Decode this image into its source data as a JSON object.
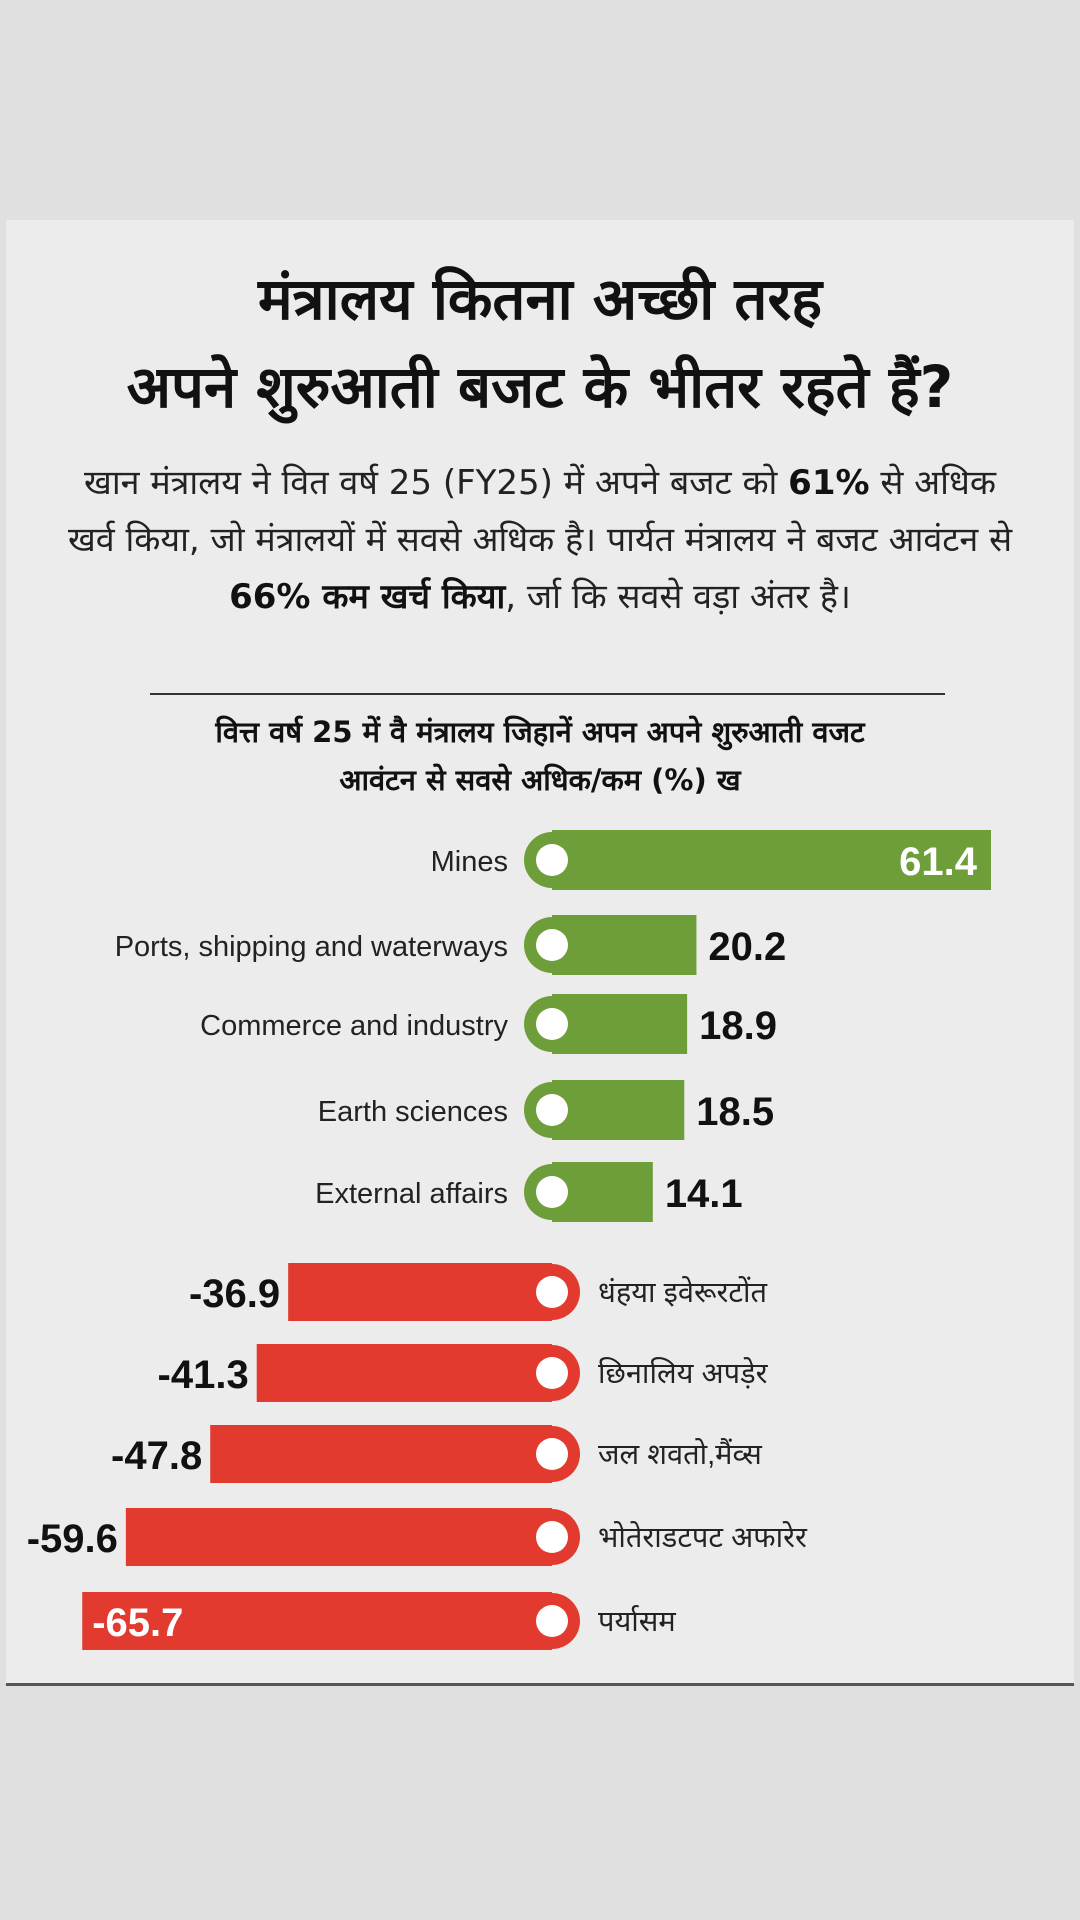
{
  "header": {
    "title_line1": "मंत्रालय कितना अच्छी तरह",
    "title_line2": "अपने शुरुआती बजट के भीतर रहते हैं?",
    "sub_part1": "खान मंत्रालय ने वित वर्ष 25 (FY25) में अपने बजट को ",
    "sub_bold1": "61%",
    "sub_part2": " से अधिक खर्व किया, जो मंत्रालयों में सवसे अधिक है। पार्यत मंत्रालय ने बजट आवंटन से ",
    "sub_bold2": "66% कम खर्च किया",
    "sub_part3": ", र्जा कि सवसे वड़ा अंतर है।",
    "chart_heading_line1": "वित्त वर्ष 25 में वै मंत्रालय जिहानें अपन अपने शुरुआती वजट",
    "chart_heading_line2": "आवंटन से सवसे अधिक/कम (%) ख"
  },
  "colors": {
    "positive": "#6e9e3a",
    "negative": "#e23a2e",
    "marker_fill": "#ffffff",
    "text": "#111111"
  },
  "chart_data": {
    "type": "bar",
    "orientation": "horizontal",
    "title": "वित्त वर्ष 25 में वै मंत्रालय जिहानें अपन अपने शुरुआती वजट आवंटन से सवसे अधिक/कम (%) ख",
    "categories": [
      "Mines",
      "Ports, shipping and waterways",
      "Commerce and industry",
      "Earth sciences",
      "External affairs",
      "धंहया इवेरूरटोंत",
      "छिनालिय अपड़ेर",
      "जल शवतो,मैंव्स",
      "भोतेराडटपट अफारेर",
      "पर्यासम"
    ],
    "values": [
      61.4,
      20.2,
      18.9,
      18.5,
      14.1,
      -36.9,
      -41.3,
      -47.8,
      -59.6,
      -65.7
    ],
    "value_labels": [
      "61.4",
      "20.2",
      "18.9",
      "18.5",
      "14.1",
      "-36.9",
      "-41.3",
      "-47.8",
      "-59.6",
      "-65.7"
    ],
    "unit": "%",
    "grid": false,
    "legend": "none"
  }
}
